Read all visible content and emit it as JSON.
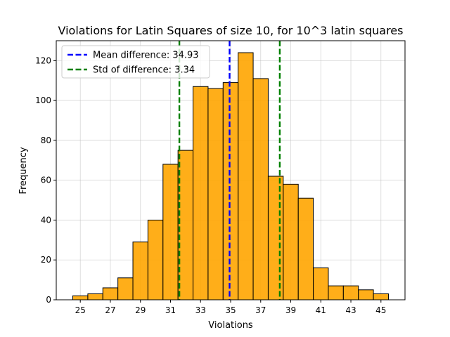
{
  "chart_data": {
    "type": "bar",
    "title": "Violations for Latin Squares of size 10, for 10^3 latin squares",
    "xlabel": "Violations",
    "ylabel": "Frequency",
    "bin_centers": [
      25,
      26,
      27,
      28,
      29,
      30,
      31,
      32,
      33,
      34,
      35,
      36,
      37,
      38,
      39,
      40,
      41,
      42,
      43,
      44,
      45
    ],
    "values": [
      2,
      3,
      6,
      11,
      29,
      40,
      68,
      75,
      107,
      106,
      109,
      124,
      111,
      62,
      58,
      51,
      16,
      7,
      7,
      5,
      3
    ],
    "bin_width": 1,
    "xlim": [
      23.4,
      46.6
    ],
    "ylim": [
      0,
      130
    ],
    "xticks": [
      25,
      27,
      29,
      31,
      33,
      35,
      37,
      39,
      41,
      43,
      45
    ],
    "yticks": [
      0,
      20,
      40,
      60,
      80,
      100,
      120
    ],
    "grid": true,
    "bar_color": "#ffa500",
    "bar_edge_color": "#000000",
    "vlines": [
      {
        "x": 34.93,
        "color": "#0000ff",
        "style": "dashed",
        "label": "Mean difference: 34.93"
      },
      {
        "x": 31.59,
        "color": "#008000",
        "style": "dashed",
        "label": "Std of difference: 3.34"
      },
      {
        "x": 38.27,
        "color": "#008000",
        "style": "dashed",
        "label": ""
      }
    ],
    "legend": {
      "position": "top-left",
      "entries": [
        {
          "label": "Mean difference: 34.93",
          "color": "#0000ff"
        },
        {
          "label": "Std of difference: 3.34",
          "color": "#008000"
        }
      ]
    }
  }
}
